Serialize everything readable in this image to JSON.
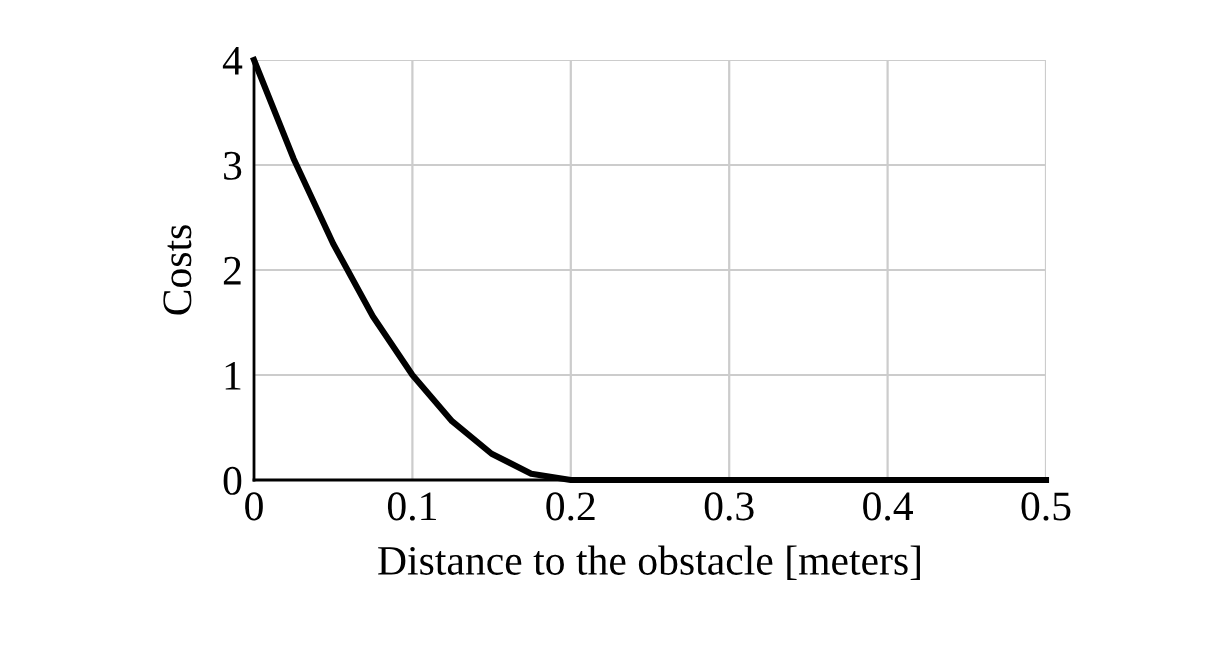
{
  "chart_data": {
    "type": "line",
    "xlabel": "Distance to the obstacle [meters]",
    "ylabel": "Costs",
    "x": [
      0,
      0.025,
      0.05,
      0.075,
      0.1,
      0.125,
      0.15,
      0.175,
      0.2,
      0.3,
      0.4,
      0.5
    ],
    "series": [
      {
        "color": "#000000",
        "values": [
          4,
          3.06,
          2.25,
          1.56,
          1,
          0.56,
          0.25,
          0.06,
          0,
          0,
          0,
          0
        ]
      }
    ],
    "xlim": [
      0,
      0.5
    ],
    "ylim": [
      0,
      4
    ],
    "xticks": [
      0,
      0.1,
      0.2,
      0.3,
      0.4,
      0.5
    ],
    "yticks": [
      0,
      1,
      2,
      3,
      4
    ],
    "grid": true,
    "marker": "none",
    "line_style": "solid"
  }
}
